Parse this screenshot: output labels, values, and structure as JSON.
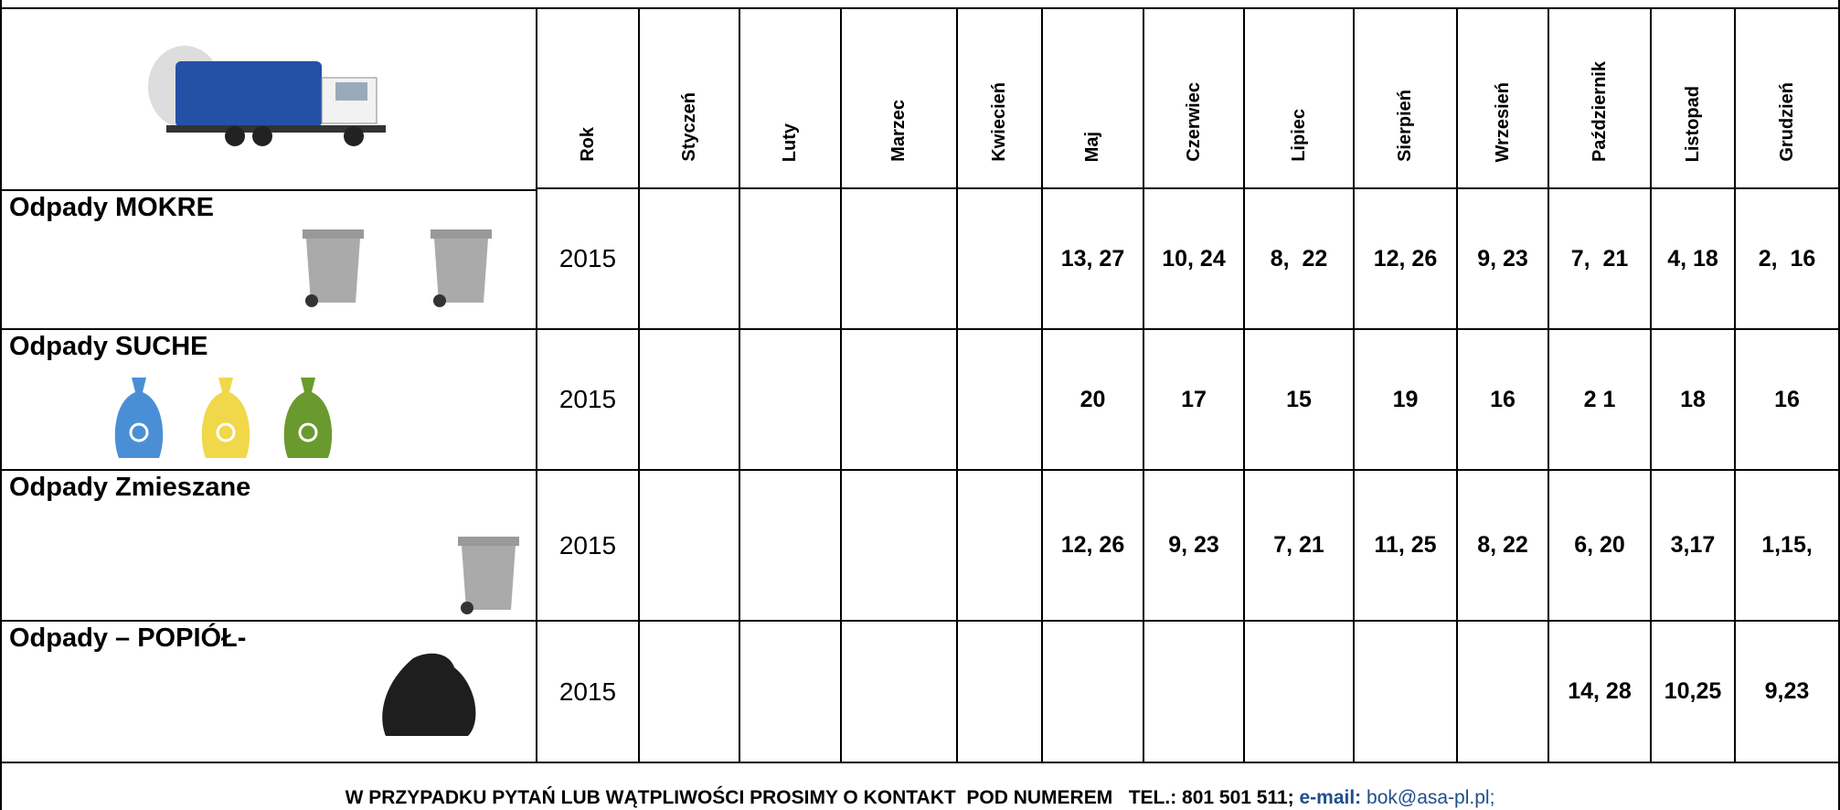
{
  "header": {
    "columns": [
      "Rok",
      "Styczeń",
      "Luty",
      "Marzec",
      "Kwiecień",
      "Maj",
      "Czerwiec",
      "Lipiec",
      "Sierpień",
      "Wrzesień",
      "Październik",
      "Listopad",
      "Grudzień"
    ]
  },
  "table": {
    "rows": [
      {
        "label": "Odpady MOKRE",
        "year": 2015,
        "cells": [
          null,
          null,
          null,
          null,
          "13, 27",
          "10, 24",
          "8,  22",
          "12, 26",
          "9, 23",
          "7,  21",
          "4, 18",
          "2,  16"
        ]
      },
      {
        "label": "Odpady SUCHE",
        "year": 2015,
        "cells": [
          null,
          null,
          null,
          null,
          "20",
          "17",
          "15",
          "19",
          "16",
          "2 1",
          "18",
          "16"
        ]
      },
      {
        "label": "Odpady Zmieszane",
        "year": 2015,
        "cells": [
          null,
          null,
          null,
          null,
          "12, 26",
          "9, 23",
          "7, 21",
          "11, 25",
          "8, 22",
          "6, 20",
          "3,17",
          "1,15,"
        ]
      },
      {
        "label": "Odpady – POPIÓŁ-",
        "year": 2015,
        "cells": [
          null,
          null,
          null,
          null,
          null,
          null,
          null,
          null,
          null,
          "14, 28",
          "10,25",
          "9,23"
        ]
      }
    ]
  },
  "footer": {
    "text": "W PRZYPADKU PYTAŃ LUB WĄTPLIWOŚCI PROSIMY O KONTAKT  POD NUMEREM   TEL.: 801 501 511;",
    "email_label": "e-mail:",
    "email": "bok@asa-pl.pl;"
  }
}
